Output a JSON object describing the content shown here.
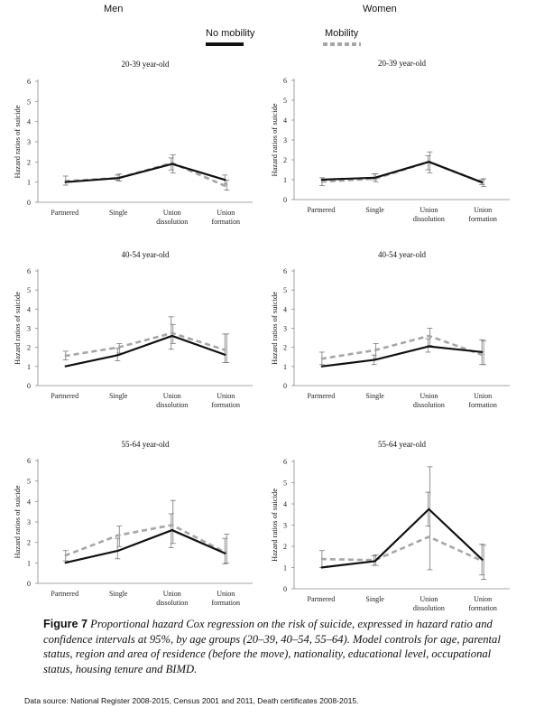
{
  "columns": {
    "left": "Men",
    "right": "Women"
  },
  "legend": [
    {
      "label": "No mobility",
      "color": "#111111",
      "dashed": false
    },
    {
      "label": "Mobility",
      "color": "#a6a6a6",
      "dashed": true
    }
  ],
  "caption": {
    "figure_label": "Figure 7",
    "text": "Proportional hazard Cox regression on the risk of suicide, expressed in hazard ratio and confidence intervals at 95%, by age groups (20–39, 40–54, 55–64). Model controls for age, parental status, region and area of residence (before the move), nationality, educational level, occupational status, housing tenure and BIMD."
  },
  "source": "Data source: National Register 2008-2015, Census 2001 and 2011, Death certificates 2008-2015.",
  "chart_data": [
    {
      "type": "line",
      "panel": "Men",
      "title": "20-39 year-old",
      "ylabel": "Hazard ratios of suicide",
      "ylim": [
        0,
        6
      ],
      "yticks": [
        0,
        1,
        2,
        3,
        4,
        5,
        6
      ],
      "categories": [
        "Partnered",
        "Single",
        "Union dissolution",
        "Union formation"
      ],
      "series": [
        {
          "name": "No mobility",
          "values": [
            1.0,
            1.2,
            1.9,
            1.1
          ],
          "ci_low": [
            1.0,
            1.1,
            1.6,
            0.9
          ],
          "ci_high": [
            1.0,
            1.35,
            2.2,
            1.35
          ]
        },
        {
          "name": "Mobility",
          "values": [
            1.05,
            1.2,
            1.95,
            0.8
          ],
          "ci_low": [
            0.85,
            1.05,
            1.45,
            0.6
          ],
          "ci_high": [
            1.3,
            1.4,
            2.35,
            1.1
          ]
        }
      ]
    },
    {
      "type": "line",
      "panel": "Women",
      "title": "20-39 year-old",
      "ylabel": "Hazard ratios of suicide",
      "ylim": [
        0,
        6
      ],
      "yticks": [
        0,
        1,
        2,
        3,
        4,
        5,
        6
      ],
      "categories": [
        "Partnered",
        "Single",
        "Union dissolution",
        "Union formation"
      ],
      "series": [
        {
          "name": "No mobility",
          "values": [
            1.0,
            1.1,
            1.9,
            0.85
          ],
          "ci_low": [
            1.0,
            1.0,
            1.5,
            0.75
          ],
          "ci_high": [
            1.0,
            1.3,
            2.2,
            1.0
          ]
        },
        {
          "name": "Mobility",
          "values": [
            0.9,
            1.05,
            1.9,
            0.85
          ],
          "ci_low": [
            0.7,
            0.9,
            1.35,
            0.65
          ],
          "ci_high": [
            1.1,
            1.3,
            2.4,
            1.05
          ]
        }
      ]
    },
    {
      "type": "line",
      "panel": "Men",
      "title": "40-54 year-old",
      "ylabel": "Hazard ratios of suicide",
      "ylim": [
        0,
        6
      ],
      "yticks": [
        0,
        1,
        2,
        3,
        4,
        5,
        6
      ],
      "categories": [
        "Partnered",
        "Single",
        "Union dissolution",
        "Union formation"
      ],
      "series": [
        {
          "name": "No mobility",
          "values": [
            1.0,
            1.6,
            2.6,
            1.6
          ],
          "ci_low": [
            1.0,
            1.3,
            1.9,
            1.2
          ],
          "ci_high": [
            1.0,
            1.95,
            3.6,
            2.7
          ]
        },
        {
          "name": "Mobility",
          "values": [
            1.55,
            2.0,
            2.75,
            1.85
          ],
          "ci_low": [
            1.35,
            1.7,
            2.2,
            1.2
          ],
          "ci_high": [
            1.8,
            2.2,
            3.2,
            2.7
          ]
        }
      ]
    },
    {
      "type": "line",
      "panel": "Women",
      "title": "40-54 year-old",
      "ylabel": "Hazard ratios of suicide",
      "ylim": [
        0,
        6
      ],
      "yticks": [
        0,
        1,
        2,
        3,
        4,
        5,
        6
      ],
      "categories": [
        "Partnered",
        "Single",
        "Union dissolution",
        "Union formation"
      ],
      "series": [
        {
          "name": "No mobility",
          "values": [
            1.0,
            1.35,
            2.05,
            1.75
          ],
          "ci_low": [
            1.0,
            1.1,
            1.75,
            1.1
          ],
          "ci_high": [
            1.0,
            1.6,
            2.45,
            2.4
          ]
        },
        {
          "name": "Mobility",
          "values": [
            1.4,
            1.85,
            2.6,
            1.6
          ],
          "ci_low": [
            1.1,
            1.4,
            2.1,
            1.1
          ],
          "ci_high": [
            1.75,
            2.2,
            3.0,
            2.35
          ]
        }
      ]
    },
    {
      "type": "line",
      "panel": "Men",
      "title": "55-64 year-old",
      "ylabel": "Hazard ratios of suicide",
      "ylim": [
        0,
        6
      ],
      "yticks": [
        0,
        1,
        2,
        3,
        4,
        5,
        6
      ],
      "categories": [
        "Partnered",
        "Single",
        "Union dissolution",
        "Union formation"
      ],
      "series": [
        {
          "name": "No mobility",
          "values": [
            1.0,
            1.6,
            2.6,
            1.45
          ],
          "ci_low": [
            1.0,
            1.2,
            1.75,
            0.95
          ],
          "ci_high": [
            1.0,
            2.2,
            3.4,
            2.2
          ]
        },
        {
          "name": "Mobility",
          "values": [
            1.35,
            2.35,
            2.85,
            1.5
          ],
          "ci_low": [
            1.1,
            1.8,
            1.95,
            1.0
          ],
          "ci_high": [
            1.6,
            2.8,
            4.05,
            2.4
          ]
        }
      ]
    },
    {
      "type": "line",
      "panel": "Women",
      "title": "55-64 year-old",
      "ylabel": "Hazard ratios of suicide",
      "ylim": [
        0,
        6
      ],
      "yticks": [
        0,
        1,
        2,
        3,
        4,
        5,
        6
      ],
      "categories": [
        "Partnered",
        "Single",
        "Union dissolution",
        "Union formation"
      ],
      "series": [
        {
          "name": "No mobility",
          "values": [
            1.0,
            1.3,
            3.75,
            1.35
          ],
          "ci_low": [
            1.0,
            1.1,
            2.95,
            0.65
          ],
          "ci_high": [
            1.0,
            1.55,
            4.55,
            2.1
          ]
        },
        {
          "name": "Mobility",
          "values": [
            1.4,
            1.35,
            2.45,
            1.3
          ],
          "ci_low": [
            1.0,
            1.1,
            0.9,
            0.45
          ],
          "ci_high": [
            1.8,
            1.6,
            5.75,
            2.05
          ]
        }
      ]
    }
  ]
}
